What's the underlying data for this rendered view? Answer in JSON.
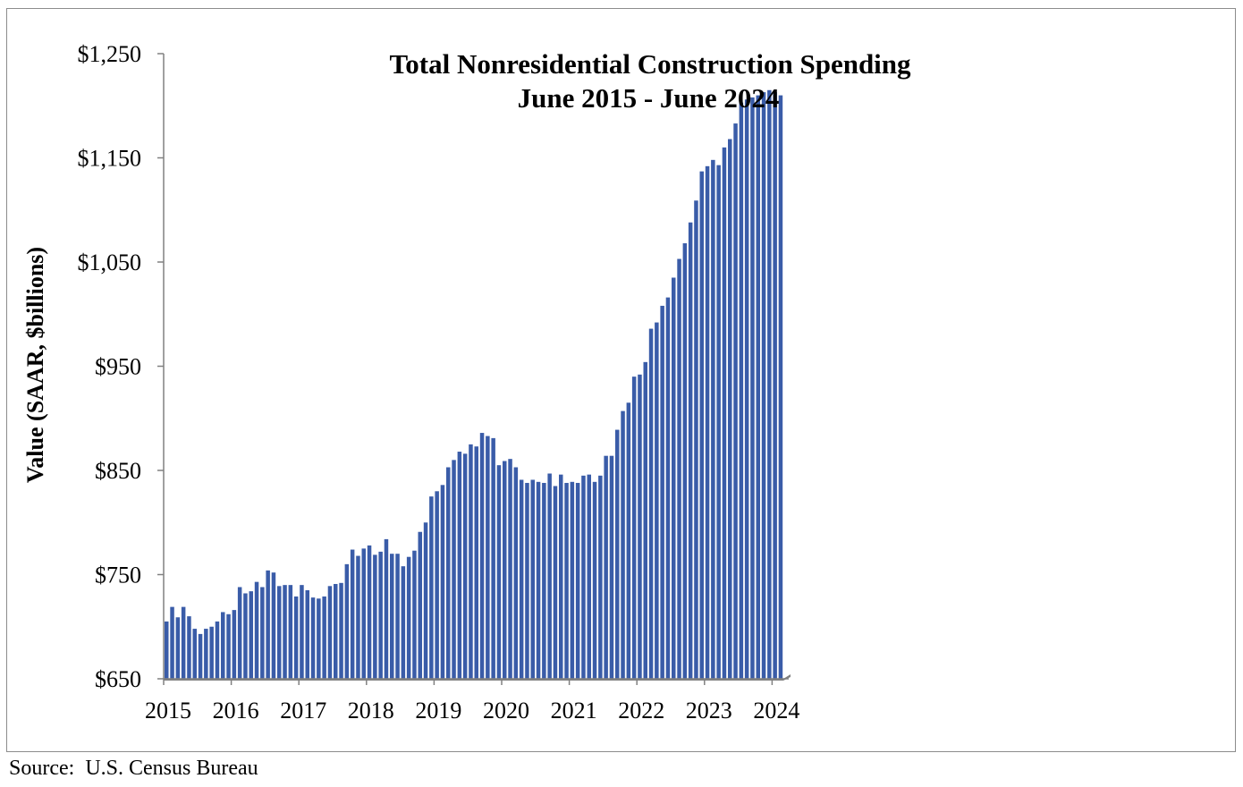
{
  "chart_data": {
    "type": "bar",
    "title": "Total Nonresidential Construction Spending",
    "subtitle": "June 2015 - June 2024",
    "xlabel": "",
    "ylabel": "Value (SAAR, $billions)",
    "ylim": [
      650,
      1250
    ],
    "y_ticks": [
      650,
      750,
      850,
      950,
      1050,
      1150,
      1250
    ],
    "y_tick_labels": [
      "$650",
      "$750",
      "$850",
      "$950",
      "$1,050",
      "$1,150",
      "$1,250"
    ],
    "x_tick_labels": [
      "2015",
      "2016",
      "2017",
      "2018",
      "2019",
      "2020",
      "2021",
      "2022",
      "2023",
      "2024"
    ],
    "grid": false,
    "bar_color": "#3a5ca8",
    "series": [
      {
        "values": [
          705,
          719,
          709,
          719,
          710,
          698,
          693,
          698,
          700,
          705,
          714,
          712,
          716,
          738,
          732,
          734,
          743,
          738,
          754,
          752,
          739,
          740,
          740,
          729,
          740,
          735,
          728,
          727,
          729,
          739,
          741,
          742,
          760,
          774,
          768,
          775,
          778,
          769,
          772,
          784,
          770,
          770,
          758,
          767,
          773,
          791,
          800,
          825,
          830,
          836,
          853,
          860,
          868,
          866,
          875,
          873,
          886,
          883,
          881,
          855,
          859,
          861,
          853,
          841,
          838,
          841,
          839,
          838,
          847,
          835,
          846,
          838,
          839,
          838,
          845,
          846,
          839,
          845,
          864,
          864,
          889,
          907,
          915,
          940,
          942,
          954,
          986,
          992,
          1008,
          1016,
          1035,
          1053,
          1068,
          1088,
          1109,
          1137,
          1142,
          1148,
          1143,
          1160,
          1168,
          1183,
          1203,
          1206,
          1208,
          1210,
          1213,
          1215,
          1213,
          1210
        ]
      }
    ]
  },
  "footer": {
    "source": "Source:  U.S. Census Bureau"
  }
}
